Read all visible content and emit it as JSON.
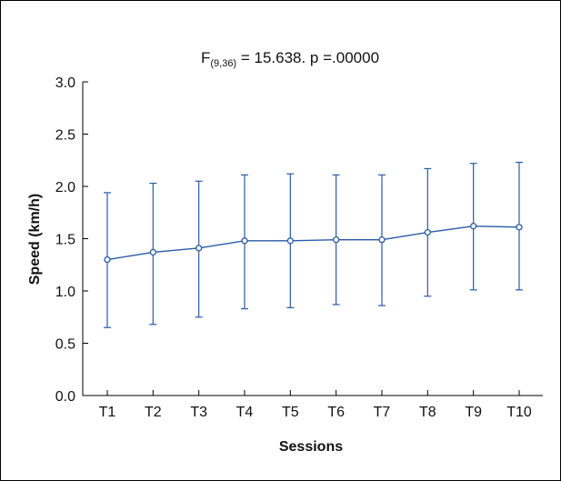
{
  "chart_data": {
    "type": "line",
    "title": "F",
    "title_subscript": "(9,36)",
    "title_rest": " = 15.638. p =.00000",
    "xlabel": "Sessions",
    "ylabel": "Speed (km/h)",
    "categories": [
      "T1",
      "T2",
      "T3",
      "T4",
      "T5",
      "T6",
      "T7",
      "T8",
      "T9",
      "T10"
    ],
    "ylim": [
      0.0,
      3.0
    ],
    "yticks": [
      "0.0",
      "0.5",
      "1.0",
      "1.5",
      "2.0",
      "2.5",
      "3.0"
    ],
    "grid": false,
    "series": [
      {
        "values": [
          1.3,
          1.37,
          1.41,
          1.48,
          1.48,
          1.49,
          1.49,
          1.56,
          1.62,
          1.61
        ],
        "error_upper": [
          1.94,
          2.03,
          2.05,
          2.11,
          2.12,
          2.11,
          2.11,
          2.17,
          2.22,
          2.23
        ],
        "error_lower": [
          0.65,
          0.68,
          0.75,
          0.83,
          0.84,
          0.87,
          0.86,
          0.95,
          1.01,
          1.01
        ],
        "color": "#2a5aa8",
        "marker": "open-circle"
      }
    ]
  }
}
